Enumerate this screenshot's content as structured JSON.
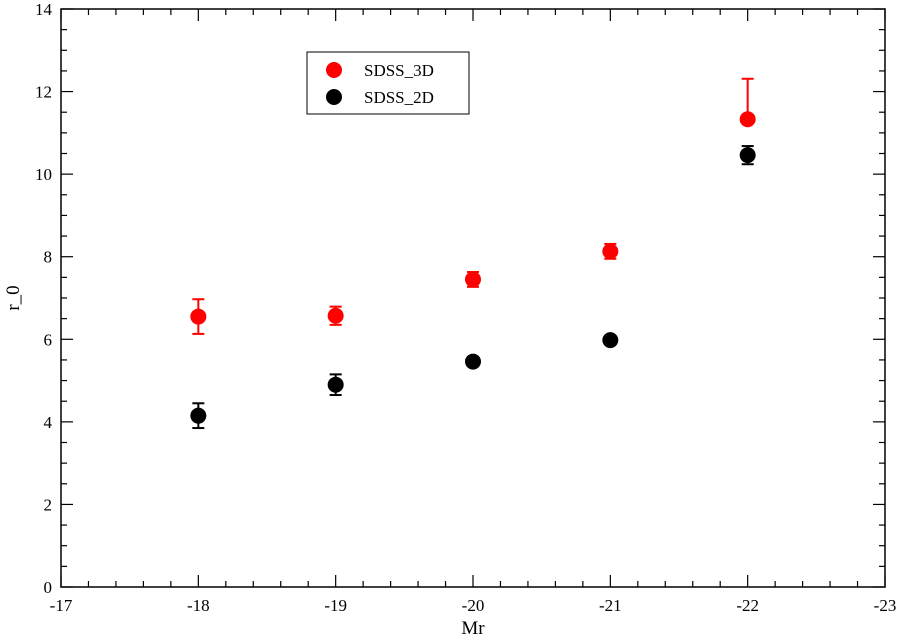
{
  "chart_data": {
    "type": "scatter",
    "title": "",
    "xlabel": "Mr",
    "ylabel": "r_0",
    "xlim": [
      -17,
      -23
    ],
    "ylim": [
      0,
      14
    ],
    "x_reversed": true,
    "x_ticks": [
      "-17",
      "-18",
      "-19",
      "-20",
      "-21",
      "-22",
      "-23"
    ],
    "y_ticks": [
      "0",
      "2",
      "4",
      "6",
      "8",
      "10",
      "12",
      "14"
    ],
    "grid": false,
    "legend_position": "top-center",
    "error_bars": true,
    "series": [
      {
        "name": "SDSS_3D",
        "color": "#ff0000",
        "marker": "circle",
        "points": [
          {
            "x": -18,
            "y": 6.55,
            "err_low": 0.42,
            "err_high": 0.42
          },
          {
            "x": -19,
            "y": 6.57,
            "err_low": 0.22,
            "err_high": 0.22
          },
          {
            "x": -20,
            "y": 7.45,
            "err_low": 0.18,
            "err_high": 0.18
          },
          {
            "x": -21,
            "y": 8.13,
            "err_low": 0.18,
            "err_high": 0.18
          },
          {
            "x": -22,
            "y": 11.33,
            "err_low": 0.0,
            "err_high": 0.98
          }
        ]
      },
      {
        "name": "SDSS_2D",
        "color": "#000000",
        "marker": "circle",
        "points": [
          {
            "x": -18,
            "y": 4.15,
            "err_low": 0.3,
            "err_high": 0.3
          },
          {
            "x": -19,
            "y": 4.9,
            "err_low": 0.25,
            "err_high": 0.25
          },
          {
            "x": -20,
            "y": 5.46,
            "err_low": 0.1,
            "err_high": 0.1
          },
          {
            "x": -21,
            "y": 5.98,
            "err_low": 0.05,
            "err_high": 0.05
          },
          {
            "x": -22,
            "y": 10.46,
            "err_low": 0.22,
            "err_high": 0.22
          }
        ]
      }
    ]
  }
}
